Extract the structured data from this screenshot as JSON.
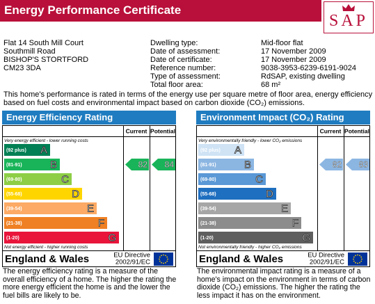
{
  "header": {
    "title": "Energy Performance Certificate",
    "logo": "SAP"
  },
  "address": [
    "Flat 14 South Mill Court",
    "Southmill Road",
    "BISHOP'S STORTFORD",
    "CM23 3DA"
  ],
  "details": [
    {
      "label": "Dwelling type:",
      "value": "Mid-floor flat"
    },
    {
      "label": "Date of assessment:",
      "value": "17 November 2009"
    },
    {
      "label": "Date of certificate:",
      "value": "17 November 2009"
    },
    {
      "label": "Reference number:",
      "value": "9038-3953-6239-6191-9024"
    },
    {
      "label": "Type of assessment:",
      "value": "RdSAP, existing dwelling"
    },
    {
      "label": "Total floor area:",
      "value": "68 m²"
    }
  ],
  "intro": "This home's performance is rated in terms of the energy use per square metre of floor area, energy efficiency based on fuel costs and environmental impact based on carbon dioxide (CO₂) emissions.",
  "ratings": [
    {
      "title": "Energy Efficiency Rating",
      "title_color": "#1f7cc0",
      "columns": [
        "Current",
        "Potential"
      ],
      "top_note": "Very energy efficient - lower running costs",
      "bottom_note": "Not energy efficient - higher running costs",
      "bands": [
        {
          "range": "(92 plus)",
          "letter": "A",
          "color": "#008054"
        },
        {
          "range": "(81-91)",
          "letter": "B",
          "color": "#19b459"
        },
        {
          "range": "(69-80)",
          "letter": "C",
          "color": "#8dce46"
        },
        {
          "range": "(55-68)",
          "letter": "D",
          "color": "#ffd500"
        },
        {
          "range": "(39-54)",
          "letter": "E",
          "color": "#fcaa65"
        },
        {
          "range": "(21-38)",
          "letter": "F",
          "color": "#ef8023"
        },
        {
          "range": "(1-20)",
          "letter": "G",
          "color": "#e9153b"
        }
      ],
      "current": 82,
      "potential": 84,
      "region": "England & Wales",
      "directive": [
        "EU Directive",
        "2002/91/EC"
      ],
      "description": "The energy efficiency rating is a measure of the overall efficiency of a home. The higher the rating the more energy efficient the home is and the lower the fuel bills are likely to be."
    },
    {
      "title": "Environment Impact (CO₂) Rating",
      "title_color": "#1f7cc0",
      "columns": [
        "Current",
        "Potential"
      ],
      "top_note": "Very environmentally friendly - lower CO₂ emissions",
      "bottom_note": "Not environmentally friendly - higher CO₂ emissions",
      "bands": [
        {
          "range": "(92 plus)",
          "letter": "A",
          "color": "#cfe3f5"
        },
        {
          "range": "(81-91)",
          "letter": "B",
          "color": "#8cb6e2"
        },
        {
          "range": "(69-80)",
          "letter": "C",
          "color": "#5a98d6"
        },
        {
          "range": "(55-68)",
          "letter": "D",
          "color": "#1f6fc0"
        },
        {
          "range": "(39-54)",
          "letter": "E",
          "color": "#a6a6a6"
        },
        {
          "range": "(21-38)",
          "letter": "F",
          "color": "#8c8c8c"
        },
        {
          "range": "(1-20)",
          "letter": "G",
          "color": "#5e5e5e"
        }
      ],
      "current": 82,
      "potential": 83,
      "region": "England & Wales",
      "directive": [
        "EU Directive",
        "2002/91/EC"
      ],
      "description": "The environmental impact rating is a measure of a home's impact on the environment in terms of carbon dioxide (CO₂) emissions. The higher the rating the less impact it has on the environment."
    }
  ]
}
